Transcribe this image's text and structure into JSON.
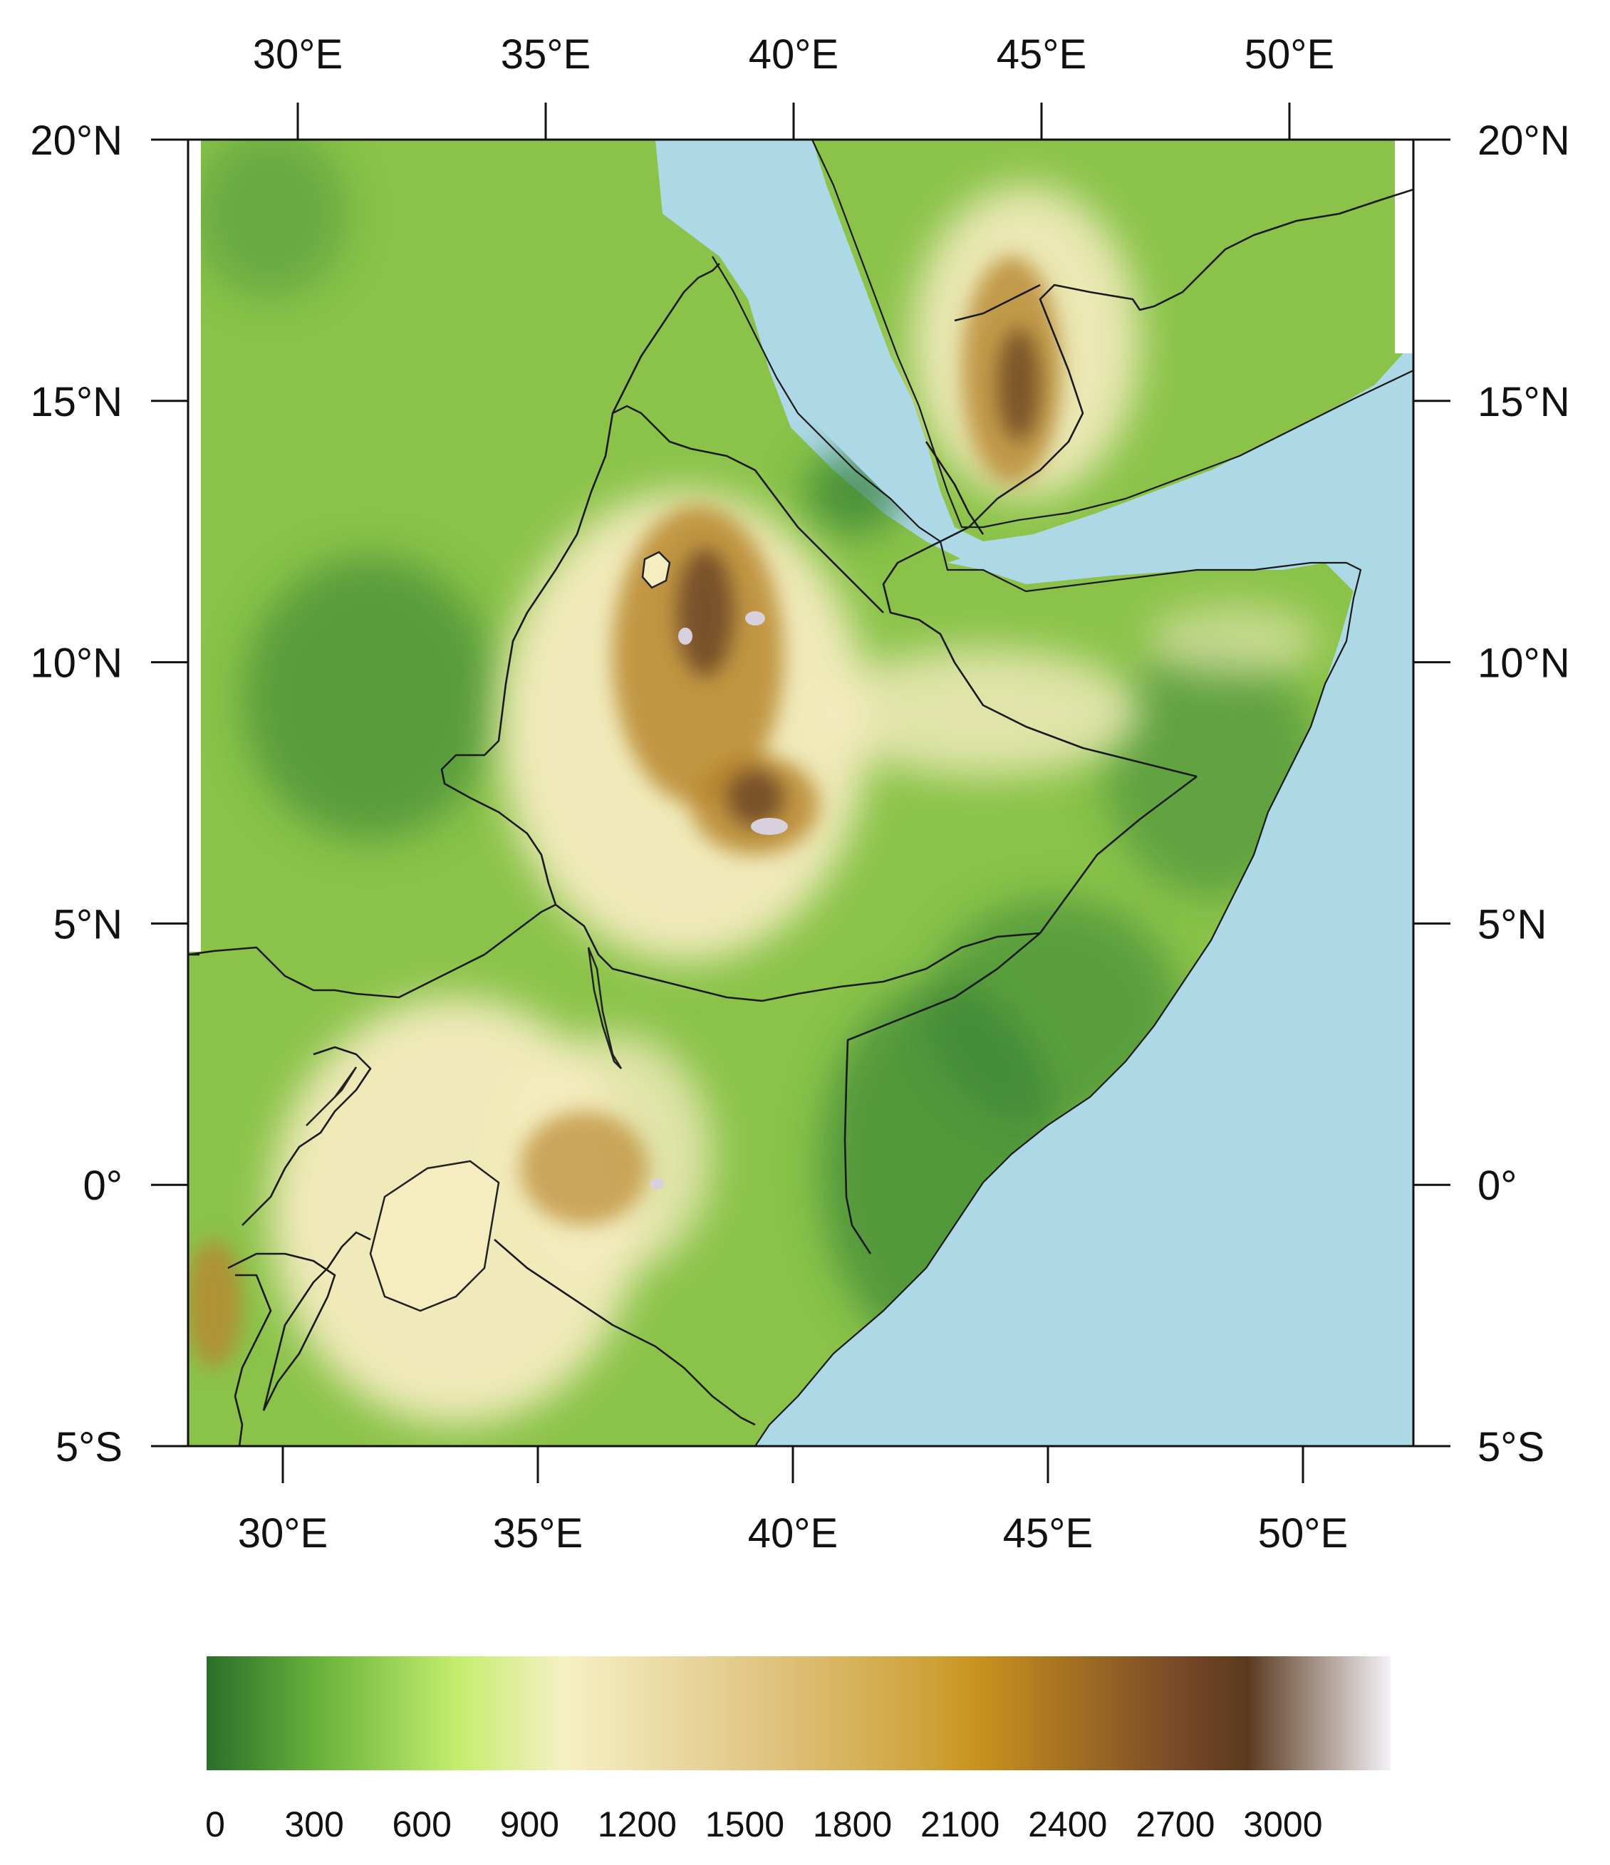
{
  "map": {
    "top_lon_ticks": [
      {
        "lon": 30,
        "label": "30°E"
      },
      {
        "lon": 35,
        "label": "35°E"
      },
      {
        "lon": 40,
        "label": "40°E"
      },
      {
        "lon": 45,
        "label": "45°E"
      },
      {
        "lon": 50,
        "label": "50°E"
      }
    ],
    "bottom_lon_ticks": [
      {
        "lon": 30,
        "label": "30°E"
      },
      {
        "lon": 35,
        "label": "35°E"
      },
      {
        "lon": 40,
        "label": "40°E"
      },
      {
        "lon": 45,
        "label": "45°E"
      },
      {
        "lon": 50,
        "label": "50°E"
      }
    ],
    "lat_ticks": [
      {
        "lat": 20,
        "label": "20°N"
      },
      {
        "lat": 15,
        "label": "15°N"
      },
      {
        "lat": 10,
        "label": "10°N"
      },
      {
        "lat": 5,
        "label": "5°N"
      },
      {
        "lat": 0,
        "label": "0°"
      },
      {
        "lat": -5,
        "label": "5°S"
      }
    ],
    "colors": {
      "water": "#add8e6",
      "lowland": "#2e7d32",
      "plain": "#8bc34a",
      "plateau": "#f5ecc0",
      "highland": "#b8872e",
      "mountain": "#6b4423",
      "peak": "#d8d0dc"
    }
  },
  "colorbar": {
    "labels": [
      "0",
      "300",
      "600",
      "900",
      "1200",
      "1500",
      "1800",
      "2100",
      "2400",
      "2700",
      "3000"
    ],
    "stops": [
      {
        "value": 0,
        "color": "#2a6e2a"
      },
      {
        "value": 300,
        "color": "#66b03a"
      },
      {
        "value": 700,
        "color": "#c4ee6e"
      },
      {
        "value": 1000,
        "color": "#f6f0c4"
      },
      {
        "value": 1500,
        "color": "#e2c98a"
      },
      {
        "value": 2000,
        "color": "#cfa33c"
      },
      {
        "value": 2150,
        "color": "#c8921e"
      },
      {
        "value": 2700,
        "color": "#7a4a28"
      },
      {
        "value": 2900,
        "color": "#5a3a1e"
      },
      {
        "value": 3300,
        "color": "#f4f2f8"
      }
    ]
  }
}
